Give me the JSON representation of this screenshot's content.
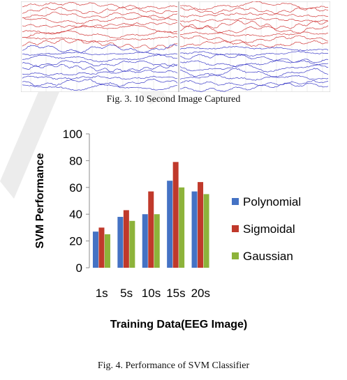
{
  "figure3": {
    "caption": "Fig. 3. 10 Second Image Captured",
    "colors": {
      "upper_traces": "#d23c3c",
      "lower_traces": "#3c3cc8"
    }
  },
  "figure4": {
    "caption": "Fig. 4. Performance of SVM Classifier"
  },
  "chart_data": {
    "type": "bar",
    "title": "",
    "xlabel": "Training Data(EEG Image)",
    "ylabel": "SVM Performance",
    "ylim": [
      0,
      100
    ],
    "yticks": [
      0,
      20,
      40,
      60,
      80,
      100
    ],
    "grid": false,
    "legend": "right",
    "categories": [
      "1s",
      "5s",
      "10s",
      "15s",
      "20s"
    ],
    "series": [
      {
        "name": "Polynomial",
        "color": "#4472c4",
        "values": [
          27,
          38,
          40,
          65,
          57
        ]
      },
      {
        "name": "Sigmoidal",
        "color": "#c0392b",
        "values": [
          30,
          43,
          57,
          79,
          64
        ]
      },
      {
        "name": "Gaussian",
        "color": "#8db33a",
        "values": [
          25,
          35,
          40,
          60,
          55
        ]
      }
    ]
  }
}
